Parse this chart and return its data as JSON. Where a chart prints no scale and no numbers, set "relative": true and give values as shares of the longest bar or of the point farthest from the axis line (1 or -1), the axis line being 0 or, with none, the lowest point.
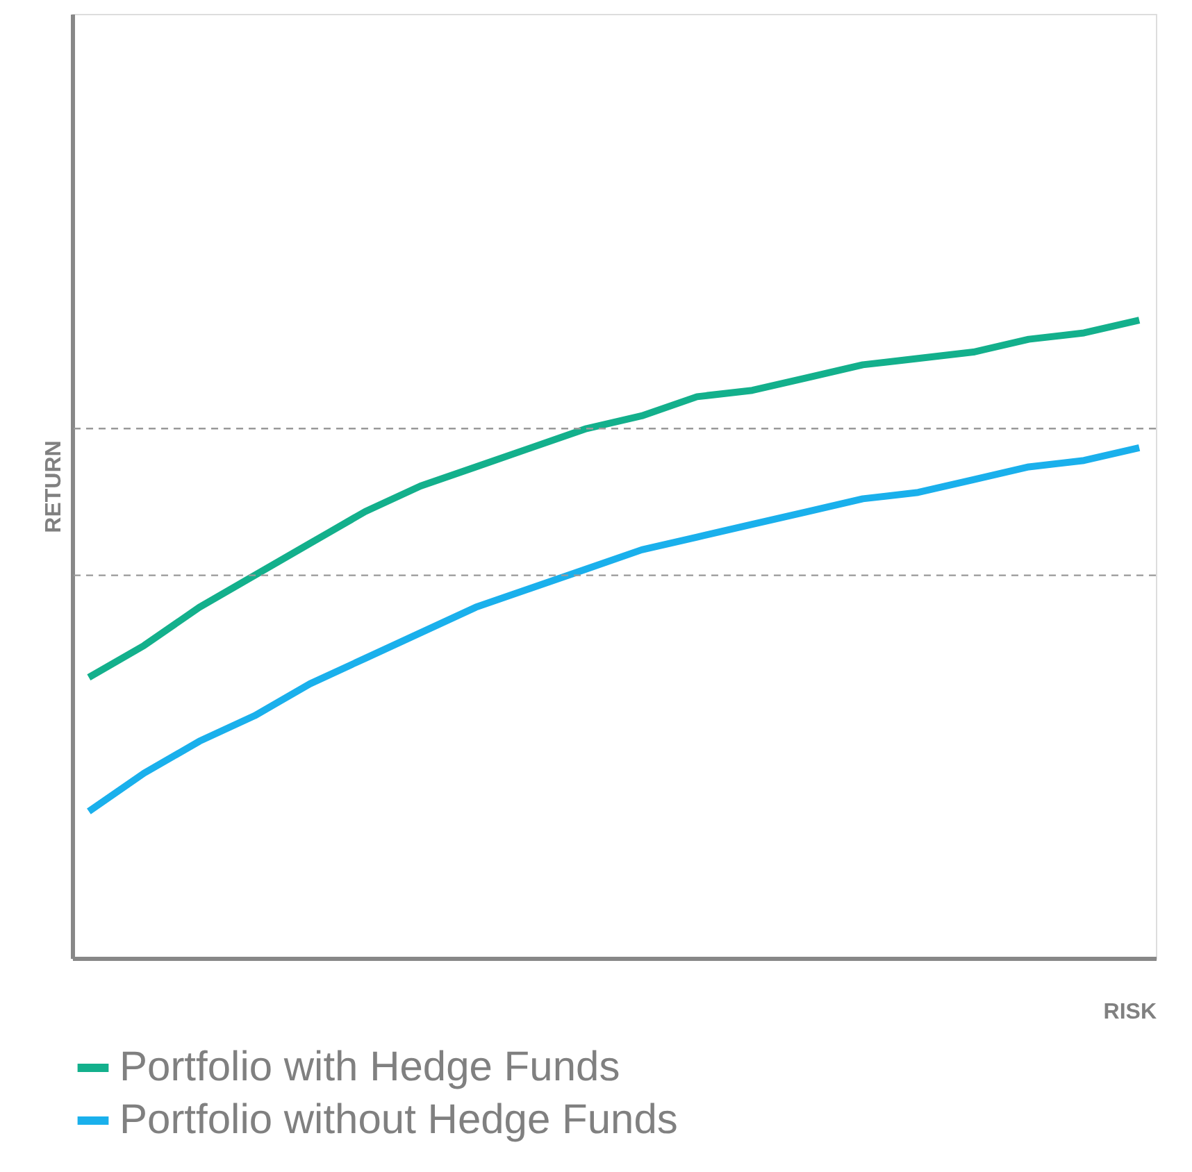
{
  "chart_data": {
    "type": "line",
    "relative": true,
    "xlabel": "RISK",
    "ylabel": "RETURN",
    "legend": "bottom",
    "grid": false,
    "line_style": "solid",
    "marker": "none",
    "categories": [
      null,
      null,
      null,
      null,
      null,
      null,
      null,
      null,
      null,
      null,
      null,
      null,
      null,
      null,
      null,
      null,
      null,
      null,
      null,
      null
    ],
    "series": [
      {
        "name": "Portfolio with Hedge Funds",
        "color": "#13b08c",
        "values": [
          0.44,
          0.49,
          0.55,
          0.6,
          0.65,
          0.7,
          0.74,
          0.77,
          0.8,
          0.83,
          0.85,
          0.88,
          0.89,
          0.91,
          0.93,
          0.94,
          0.95,
          0.97,
          0.98,
          1.0
        ]
      },
      {
        "name": "Portfolio without Hedge Funds",
        "color": "#1ab0ec",
        "values": [
          0.23,
          0.29,
          0.34,
          0.38,
          0.43,
          0.47,
          0.51,
          0.55,
          0.58,
          0.61,
          0.64,
          0.66,
          0.68,
          0.7,
          0.72,
          0.73,
          0.75,
          0.77,
          0.78,
          0.8
        ]
      }
    ],
    "ref_lines": [
      {
        "axis": "y",
        "value": 0.83,
        "color": "#999999",
        "line_style": "dashed"
      },
      {
        "axis": "y",
        "value": 0.6,
        "color": "#999999",
        "line_style": "dashed"
      }
    ]
  }
}
